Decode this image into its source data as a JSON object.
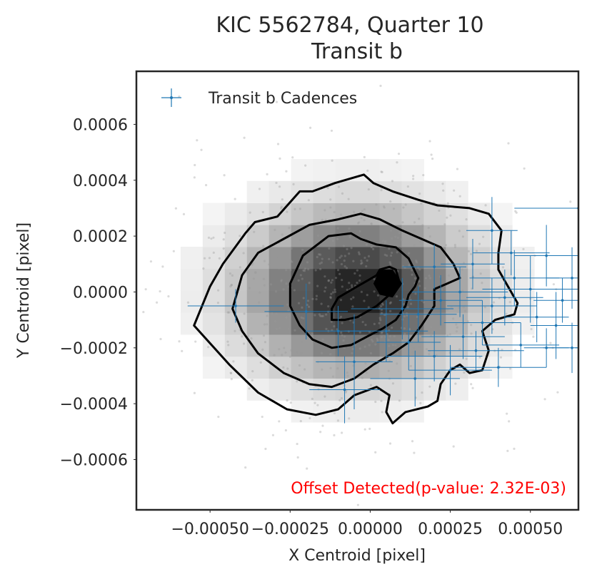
{
  "chart_data": {
    "type": "scatter",
    "title": "KIC 5562784, Quarter 10",
    "subtitle": "Transit b",
    "xlabel": "X Centroid [pixel]",
    "ylabel": "Y Centroid [pixel]",
    "xlim": [
      -0.00073,
      0.00065
    ],
    "ylim": [
      -0.00078,
      0.00079
    ],
    "xticks": [
      -0.0005,
      -0.00025,
      0.0,
      0.00025,
      0.0005
    ],
    "xtick_labels": [
      "−0.00050",
      "−0.00025",
      "0.00000",
      "0.00025",
      "0.00050"
    ],
    "yticks": [
      -0.0006,
      -0.0004,
      -0.0002,
      0.0,
      0.0002,
      0.0004,
      0.0006
    ],
    "ytick_labels": [
      "−0.0006",
      "−0.0004",
      "−0.0002",
      "0.0000",
      "0.0002",
      "0.0004",
      "0.0006"
    ],
    "grid": false,
    "legend": {
      "position": "top-left",
      "entries": [
        "Transit b Cadences"
      ]
    },
    "annotation": {
      "text": "Offset Detected(p-value: 2.32E-03)",
      "color": "#ff0000",
      "position": "bottom-right"
    },
    "colors": {
      "transit": "#1f77b4",
      "background_points": "#999999",
      "contour": "#000000"
    },
    "density_contours": [
      {
        "level": "outer",
        "points": [
          [
            -0.00055,
            -0.00012
          ],
          [
            -0.0005,
            2e-05
          ],
          [
            -0.00046,
            0.0001
          ],
          [
            -0.00039,
            0.00021
          ],
          [
            -0.00036,
            0.00025
          ],
          [
            -0.00029,
            0.00027
          ],
          [
            -0.00022,
            0.00036
          ],
          [
            -0.00018,
            0.00036
          ],
          [
            -0.00011,
            0.00039
          ],
          [
            -2e-05,
            0.00042
          ],
          [
            1e-05,
            0.00039
          ],
          [
            7e-05,
            0.00036
          ],
          [
            0.00015,
            0.00033
          ],
          [
            0.00021,
            0.00031
          ],
          [
            0.00031,
            0.0003
          ],
          [
            0.00037,
            0.00028
          ],
          [
            0.00041,
            0.00022
          ],
          [
            0.0004,
            0.00014
          ],
          [
            0.0004,
            8e-05
          ],
          [
            0.00043,
            2e-05
          ],
          [
            0.00046,
            -4e-05
          ],
          [
            0.00045,
            -8e-05
          ],
          [
            0.00039,
            -0.0001
          ],
          [
            0.00035,
            -0.00014
          ],
          [
            0.00037,
            -0.00021
          ],
          [
            0.00035,
            -0.00028
          ],
          [
            0.00031,
            -0.00029
          ],
          [
            0.00028,
            -0.00026
          ],
          [
            0.00025,
            -0.00028
          ],
          [
            0.00022,
            -0.00033
          ],
          [
            0.00021,
            -0.00039
          ],
          [
            0.00018,
            -0.00041
          ],
          [
            0.00011,
            -0.00043
          ],
          [
            7e-05,
            -0.00047
          ],
          [
            5e-05,
            -0.00043
          ],
          [
            6e-05,
            -0.00037
          ],
          [
            2e-05,
            -0.00034
          ],
          [
            -5e-05,
            -0.00037
          ],
          [
            -0.0001,
            -0.00042
          ],
          [
            -0.00017,
            -0.00044
          ],
          [
            -0.00026,
            -0.00042
          ],
          [
            -0.00035,
            -0.00036
          ],
          [
            -0.00044,
            -0.00026
          ],
          [
            -0.00055,
            -0.00012
          ]
        ]
      },
      {
        "level": "middle",
        "points": [
          [
            -0.00043,
            -6e-05
          ],
          [
            -0.0004,
            6e-05
          ],
          [
            -0.00035,
            0.00014
          ],
          [
            -0.00027,
            0.00019
          ],
          [
            -0.00019,
            0.00024
          ],
          [
            -0.0001,
            0.00026
          ],
          [
            -3e-05,
            0.00028
          ],
          [
            3e-05,
            0.00026
          ],
          [
            0.0001,
            0.00022
          ],
          [
            0.00016,
            0.00019
          ],
          [
            0.00022,
            0.00016
          ],
          [
            0.00026,
            0.0001
          ],
          [
            0.00028,
            5e-05
          ],
          [
            0.00024,
            3e-05
          ],
          [
            0.0002,
            1e-05
          ],
          [
            0.0002,
            -5e-05
          ],
          [
            0.00016,
            -0.00012
          ],
          [
            0.00012,
            -0.00018
          ],
          [
            7e-05,
            -0.00022
          ],
          [
            1e-05,
            -0.00026
          ],
          [
            -5e-05,
            -0.00031
          ],
          [
            -0.00012,
            -0.00034
          ],
          [
            -0.00019,
            -0.00033
          ],
          [
            -0.00027,
            -0.00029
          ],
          [
            -0.00035,
            -0.00022
          ],
          [
            -0.0004,
            -0.00014
          ],
          [
            -0.00043,
            -6e-05
          ]
        ]
      },
      {
        "level": "inner",
        "points": [
          [
            -0.00025,
            3e-05
          ],
          [
            -0.00021,
            0.00013
          ],
          [
            -0.00013,
            0.0002
          ],
          [
            -6e-05,
            0.00021
          ],
          [
            -3e-05,
            0.00019
          ],
          [
            2e-05,
            0.00017
          ],
          [
            8e-05,
            0.00016
          ],
          [
            0.00012,
            0.00012
          ],
          [
            0.00015,
            5e-05
          ],
          [
            0.00014,
            2e-05
          ],
          [
            0.00012,
            -1e-05
          ],
          [
            0.00011,
            -5e-05
          ],
          [
            8e-05,
            -0.0001
          ],
          [
            4e-05,
            -0.00013
          ],
          [
            -1e-05,
            -0.00016
          ],
          [
            -6e-05,
            -0.00019
          ],
          [
            -0.00012,
            -0.0002
          ],
          [
            -0.00018,
            -0.00017
          ],
          [
            -0.00022,
            -0.00012
          ],
          [
            -0.00025,
            -5e-05
          ],
          [
            -0.00025,
            3e-05
          ]
        ]
      },
      {
        "level": "core",
        "points": [
          [
            -0.00012,
            -0.0001
          ],
          [
            -0.00012,
            -6e-05
          ],
          [
            -0.0001,
            -2e-05
          ],
          [
            -7e-05,
            0
          ],
          [
            -4e-05,
            2e-05
          ],
          [
            -1e-05,
            4e-05
          ],
          [
            2e-05,
            6e-05
          ],
          [
            3e-05,
            8e-05
          ],
          [
            6e-05,
            9e-05
          ],
          [
            8e-05,
            8e-05
          ],
          [
            9e-05,
            4e-05
          ],
          [
            8e-05,
            1e-05
          ],
          [
            6e-05,
            -1e-05
          ],
          [
            4e-05,
            -3e-05
          ],
          [
            2e-05,
            -5e-05
          ],
          [
            -1e-05,
            -7e-05
          ],
          [
            -4e-05,
            -9e-05
          ],
          [
            -8e-05,
            -0.0001
          ],
          [
            -0.00012,
            -0.0001
          ]
        ]
      }
    ],
    "series": [
      {
        "name": "Transit b Cadences",
        "x": [
          0.00038,
          0.00065,
          0.00044,
          0.00055,
          0.00032,
          0.0002,
          0.00045,
          0.00063,
          0.0005,
          0.00028,
          0.00042,
          0.00022,
          0.0006,
          0.00038,
          0.0001,
          -0.0002,
          -0.00042,
          0.00015,
          0.00052,
          0.00035,
          0.00058,
          5e-05,
          -0.0001,
          0.00029,
          0.00012,
          0.00047,
          0.00063,
          0.00033,
          0.0002,
          -5e-05,
          0.00025,
          0.00014,
          0.0004,
          0.00055,
          -8e-05,
          0.00068
        ],
        "y": [
          0.00022,
          0.0003,
          0.00014,
          0.00013,
          0.0001,
          9e-05,
          5e-05,
          5e-05,
          1e-05,
          0.0,
          -2e-05,
          -3e-05,
          -3e-05,
          -5e-05,
          -6e-05,
          -7e-05,
          -5e-05,
          -8e-05,
          -9e-05,
          -0.00011,
          -0.00012,
          -0.00014,
          -0.00014,
          -0.00016,
          -0.00018,
          -0.00019,
          -0.0002,
          -0.00021,
          -0.00023,
          -0.00025,
          -0.00028,
          -0.00031,
          -0.00027,
          -0.0002,
          -0.00035,
          -0.0002
        ],
        "xerr": [
          8e-05,
          0.0002,
          0.00012,
          0.0001,
          0.0001,
          0.0001,
          0.00014,
          8e-05,
          0.00015,
          0.00015,
          0.00012,
          0.00013,
          9e-05,
          0.00014,
          0.00016,
          0.00013,
          0.00015,
          0.00012,
          0.0001,
          0.00012,
          8e-05,
          0.00013,
          0.0001,
          0.00013,
          0.0001,
          0.00012,
          9e-05,
          0.00015,
          0.00015,
          0.00012,
          0.00013,
          0.00014,
          0.00015,
          7e-05,
          0.00011,
          4e-05
        ],
        "yerr": [
          0.00012,
          0.00018,
          8e-05,
          0.00011,
          9e-05,
          8e-05,
          0.0001,
          0.00011,
          0.00012,
          9e-05,
          0.0001,
          9e-05,
          8e-05,
          0.0001,
          0.00011,
          0.0001,
          6e-05,
          0.0001,
          9e-05,
          8e-05,
          0.00012,
          0.00011,
          9e-05,
          8e-05,
          0.0001,
          8e-05,
          9e-05,
          7e-05,
          9e-05,
          0.00017,
          9e-05,
          0.0001,
          7e-05,
          7e-05,
          0.00012,
          0.0001
        ]
      }
    ]
  }
}
